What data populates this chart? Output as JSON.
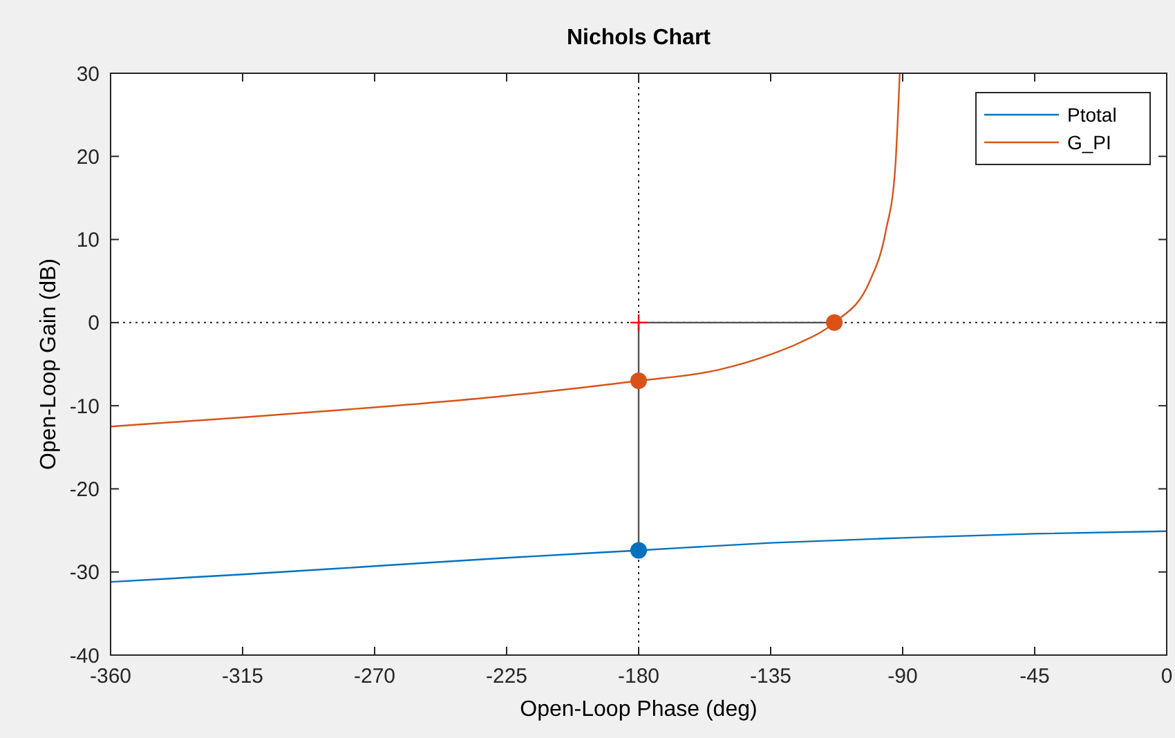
{
  "chart_data": {
    "type": "line",
    "title": "Nichols Chart",
    "xlabel": "Open-Loop Phase (deg)",
    "ylabel": "Open-Loop Gain (dB)",
    "xlim": [
      -360,
      0
    ],
    "ylim": [
      -40,
      30
    ],
    "xticks": [
      -360,
      -315,
      -270,
      -225,
      -180,
      -135,
      -90,
      -45,
      0
    ],
    "yticks": [
      -40,
      -30,
      -20,
      -10,
      0,
      10,
      20,
      30
    ],
    "grid": false,
    "legend": "top right",
    "line_style": "solid",
    "ref_lines": [
      {
        "axis": "x",
        "value": -180,
        "color": "#262626",
        "line_style": "dotted"
      },
      {
        "axis": "y",
        "value": 0,
        "color": "#262626",
        "line_style": "dotted"
      }
    ],
    "series": [
      {
        "name": "Ptotal",
        "color": "#0072bd",
        "marker": "none",
        "x": [
          -360,
          -315,
          -270,
          -225,
          -180,
          -135,
          -90,
          -45,
          0
        ],
        "values": [
          -31.2,
          -30.3,
          -29.3,
          -28.3,
          -27.4,
          -26.5,
          -25.9,
          -25.4,
          -25.1
        ]
      },
      {
        "name": "G_PI",
        "color": "#d95319",
        "marker": "none",
        "x": [
          -360,
          -315,
          -270,
          -225,
          -180,
          -153,
          -134,
          -125,
          -113.3,
          -101.2,
          -95.7,
          -92.6,
          -91
        ],
        "values": [
          -12.5,
          -11.4,
          -10.2,
          -8.8,
          -7,
          -5.7,
          -3.7,
          -2.4,
          0,
          5,
          11.1,
          18.3,
          30
        ]
      },
      {
        "color": "#505050",
        "type": "line",
        "marker": "none",
        "x": [
          -180,
          -180
        ],
        "values": [
          0,
          -27.4
        ]
      },
      {
        "color": "#505050",
        "type": "line",
        "marker": "none",
        "x": [
          -180,
          -113.3
        ],
        "values": [
          0,
          0
        ]
      },
      {
        "color": "#0072bd",
        "type": "scatter",
        "marker": "circle",
        "x": [
          -180
        ],
        "values": [
          -27.4
        ]
      },
      {
        "color": "#d95319",
        "type": "scatter",
        "marker": "circle",
        "x": [
          -180,
          -113.3
        ],
        "values": [
          -7,
          0
        ]
      },
      {
        "color": "#ff0000",
        "type": "scatter",
        "marker": "cross",
        "x": [
          -180
        ],
        "values": [
          0
        ]
      }
    ]
  }
}
